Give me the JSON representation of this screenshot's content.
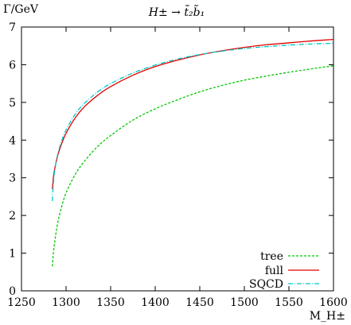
{
  "chart_data": {
    "type": "line",
    "title": "H± → t̃₂b̃₁",
    "xlabel": "M_H±",
    "ylabel": "Γ/GeV",
    "xlim": [
      1250,
      1600
    ],
    "ylim": [
      0,
      7
    ],
    "xticks": [
      1250,
      1300,
      1350,
      1400,
      1450,
      1500,
      1550,
      1600
    ],
    "yticks": [
      0,
      1,
      2,
      3,
      4,
      5,
      6,
      7
    ],
    "grid": false,
    "legend_position": "bottom-right",
    "series": [
      {
        "name": "tree",
        "color": "#00c800",
        "dash": "dashed",
        "x": [
          1284.6,
          1286,
          1288,
          1291,
          1295,
          1300,
          1310,
          1320,
          1335,
          1350,
          1375,
          1400,
          1425,
          1450,
          1475,
          1500,
          1525,
          1550,
          1575,
          1600
        ],
        "y": [
          0.65,
          1.05,
          1.42,
          1.85,
          2.23,
          2.6,
          3.08,
          3.42,
          3.82,
          4.12,
          4.53,
          4.83,
          5.07,
          5.28,
          5.45,
          5.59,
          5.7,
          5.8,
          5.89,
          5.97
        ]
      },
      {
        "name": "full",
        "color": "#e00000",
        "dash": "solid",
        "x": [
          1284.6,
          1286,
          1288,
          1291,
          1295,
          1300,
          1310,
          1320,
          1335,
          1350,
          1375,
          1400,
          1425,
          1450,
          1475,
          1500,
          1525,
          1550,
          1575,
          1600
        ],
        "y": [
          2.7,
          3.05,
          3.32,
          3.62,
          3.9,
          4.18,
          4.58,
          4.87,
          5.18,
          5.42,
          5.72,
          5.95,
          6.12,
          6.26,
          6.37,
          6.46,
          6.53,
          6.58,
          6.63,
          6.67
        ]
      },
      {
        "name": "SQCD",
        "color": "#00c8c8",
        "dash": "dash-dot",
        "x": [
          1284.6,
          1286,
          1288,
          1291,
          1295,
          1300,
          1310,
          1320,
          1335,
          1350,
          1375,
          1400,
          1425,
          1450,
          1475,
          1500,
          1525,
          1550,
          1575,
          1600
        ],
        "y": [
          2.38,
          2.92,
          3.3,
          3.66,
          3.97,
          4.27,
          4.68,
          4.96,
          5.27,
          5.5,
          5.78,
          5.99,
          6.15,
          6.27,
          6.36,
          6.43,
          6.48,
          6.52,
          6.55,
          6.57
        ]
      }
    ]
  }
}
